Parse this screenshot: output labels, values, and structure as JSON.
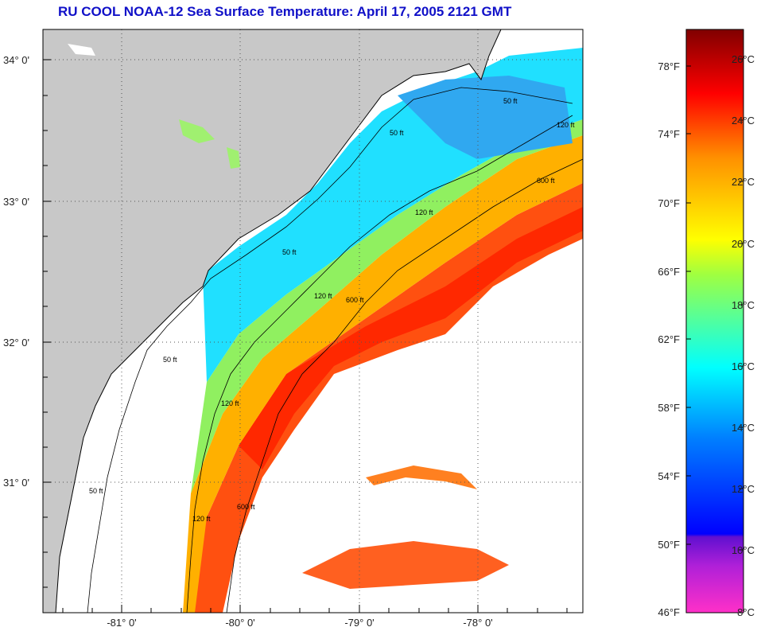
{
  "title": "RU COOL  NOAA-12  Sea Surface Temperature:  April 17, 2005 2121 GMT",
  "map": {
    "lon_ticks": [
      "-81° 0'",
      "-80° 0'",
      "-79° 0'",
      "-78° 0'"
    ],
    "lat_ticks": [
      "34° 0'",
      "33° 0'",
      "32° 0'",
      "31° 0'"
    ],
    "contour_labels": [
      "50 ft",
      "50 ft",
      "50 ft",
      "120 ft",
      "120 ft",
      "120 ft",
      "120 ft",
      "600 ft",
      "600 ft",
      "600 ft",
      "50 ft",
      "50 ft",
      "120 ft"
    ],
    "colors": {
      "land": "#c8c8c8",
      "cloud": "#ffffff",
      "grid": "#555555"
    }
  },
  "colorbar": {
    "fahrenheit_labels": [
      "78°F",
      "74°F",
      "70°F",
      "66°F",
      "62°F",
      "58°F",
      "54°F",
      "50°F",
      "46°F"
    ],
    "celsius_labels": [
      "26°C",
      "24°C",
      "22°C",
      "20°C",
      "18°C",
      "16°C",
      "14°C",
      "12°C",
      "10°C",
      "8°C"
    ],
    "stops": [
      {
        "color": "#ff30c8"
      },
      {
        "color": "#7020d0"
      },
      {
        "color": "#0000ff"
      },
      {
        "color": "#00a0ff"
      },
      {
        "color": "#00ffff"
      },
      {
        "color": "#80ff80"
      },
      {
        "color": "#ffff00"
      },
      {
        "color": "#ff9000"
      },
      {
        "color": "#ff0000"
      },
      {
        "color": "#800000"
      }
    ]
  }
}
